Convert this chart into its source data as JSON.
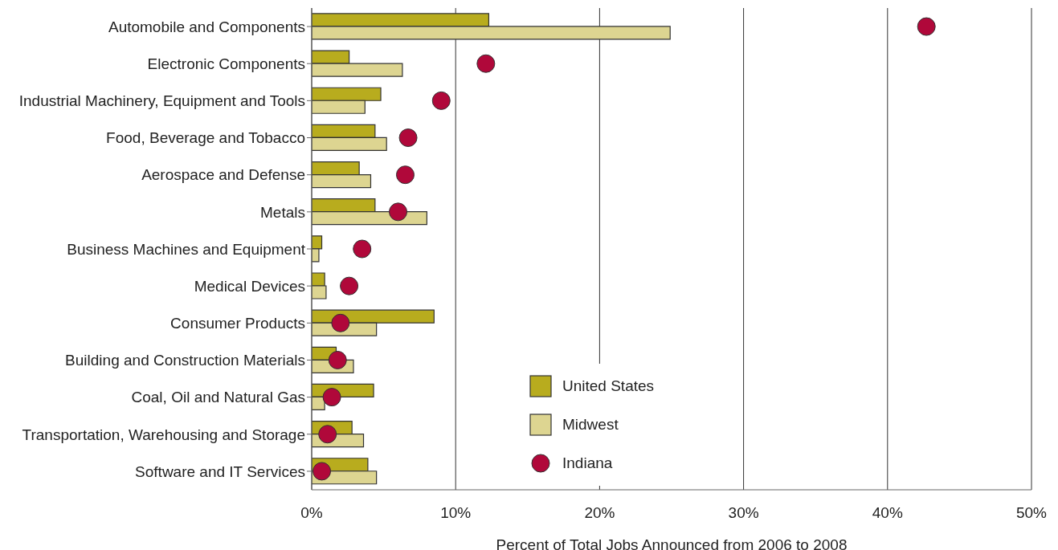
{
  "chart_data": {
    "type": "bar",
    "orientation": "horizontal",
    "xlabel": "Percent of Total Jobs Announced from 2006 to 2008",
    "categories": [
      "Automobile and Components",
      "Electronic Components",
      "Industrial Machinery, Equipment and Tools",
      "Food, Beverage and Tobacco",
      "Aerospace and Defense",
      "Metals",
      "Business Machines and Equipment",
      "Medical Devices",
      "Consumer Products",
      "Building and Construction Materials",
      "Coal, Oil and Natural Gas",
      "Transportation, Warehousing and Storage",
      "Software and IT Services"
    ],
    "series": [
      {
        "name": "United States",
        "color": "#b8ac1e",
        "values": [
          12.3,
          2.6,
          4.8,
          4.4,
          3.3,
          4.4,
          0.7,
          0.9,
          8.5,
          1.7,
          4.3,
          2.8,
          3.9
        ]
      },
      {
        "name": "Midwest",
        "color": "#ddd591",
        "values": [
          24.9,
          6.3,
          3.7,
          5.2,
          4.1,
          8.0,
          0.5,
          1.0,
          4.5,
          2.9,
          0.9,
          3.6,
          4.5
        ]
      },
      {
        "name": "Indiana",
        "type": "scatter",
        "color": "#b0083a",
        "marker": "circle",
        "values": [
          42.7,
          12.1,
          9.0,
          6.7,
          6.5,
          6.0,
          3.5,
          2.6,
          2.0,
          1.8,
          1.4,
          1.1,
          0.7
        ]
      }
    ],
    "xlim": [
      0,
      50
    ],
    "xticks": [
      {
        "value": 0,
        "label": "0%"
      },
      {
        "value": 10,
        "label": "10%"
      },
      {
        "value": 20,
        "label": "20%"
      },
      {
        "value": 30,
        "label": "30%"
      },
      {
        "value": 40,
        "label": "40%"
      },
      {
        "value": 50,
        "label": "50%"
      }
    ],
    "grid": "x",
    "legend": "bottom"
  }
}
